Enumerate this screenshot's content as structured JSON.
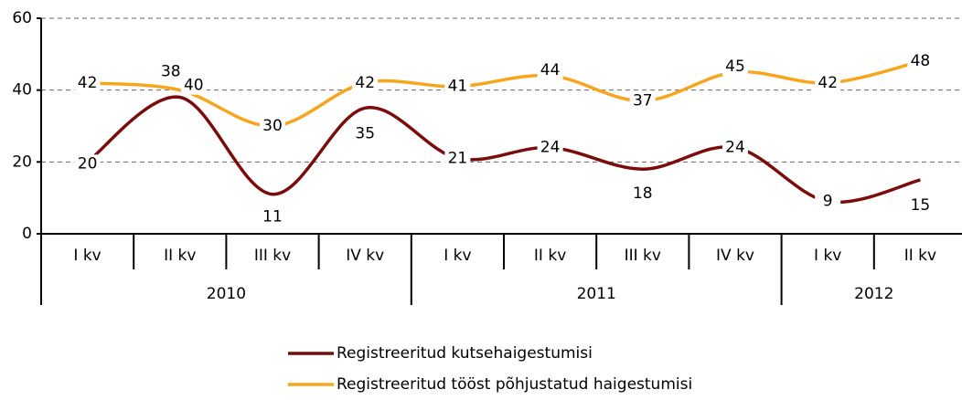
{
  "chart_data": {
    "type": "line",
    "categories_by_year": [
      {
        "year": "2010",
        "quarters": [
          "I kv",
          "II kv",
          "III kv",
          "IV kv"
        ]
      },
      {
        "year": "2011",
        "quarters": [
          "I kv",
          "II kv",
          "III kv",
          "IV kv"
        ]
      },
      {
        "year": "2012",
        "quarters": [
          "I kv",
          "II kv"
        ]
      }
    ],
    "series": [
      {
        "name": "Registreeritud kutsehaigestumisi",
        "color": "#7b0c0c",
        "values": [
          20,
          38,
          11,
          35,
          21,
          24,
          18,
          24,
          9,
          15
        ]
      },
      {
        "name": "Registreeritud tööst põhjustatud haigestumisi",
        "color": "#f7a51c",
        "values": [
          42,
          40,
          30,
          42,
          41,
          44,
          37,
          45,
          42,
          48
        ]
      }
    ],
    "ylim": [
      0,
      60
    ],
    "yticks": [
      0,
      20,
      40,
      60
    ],
    "grid": true,
    "legend": "bottom"
  }
}
